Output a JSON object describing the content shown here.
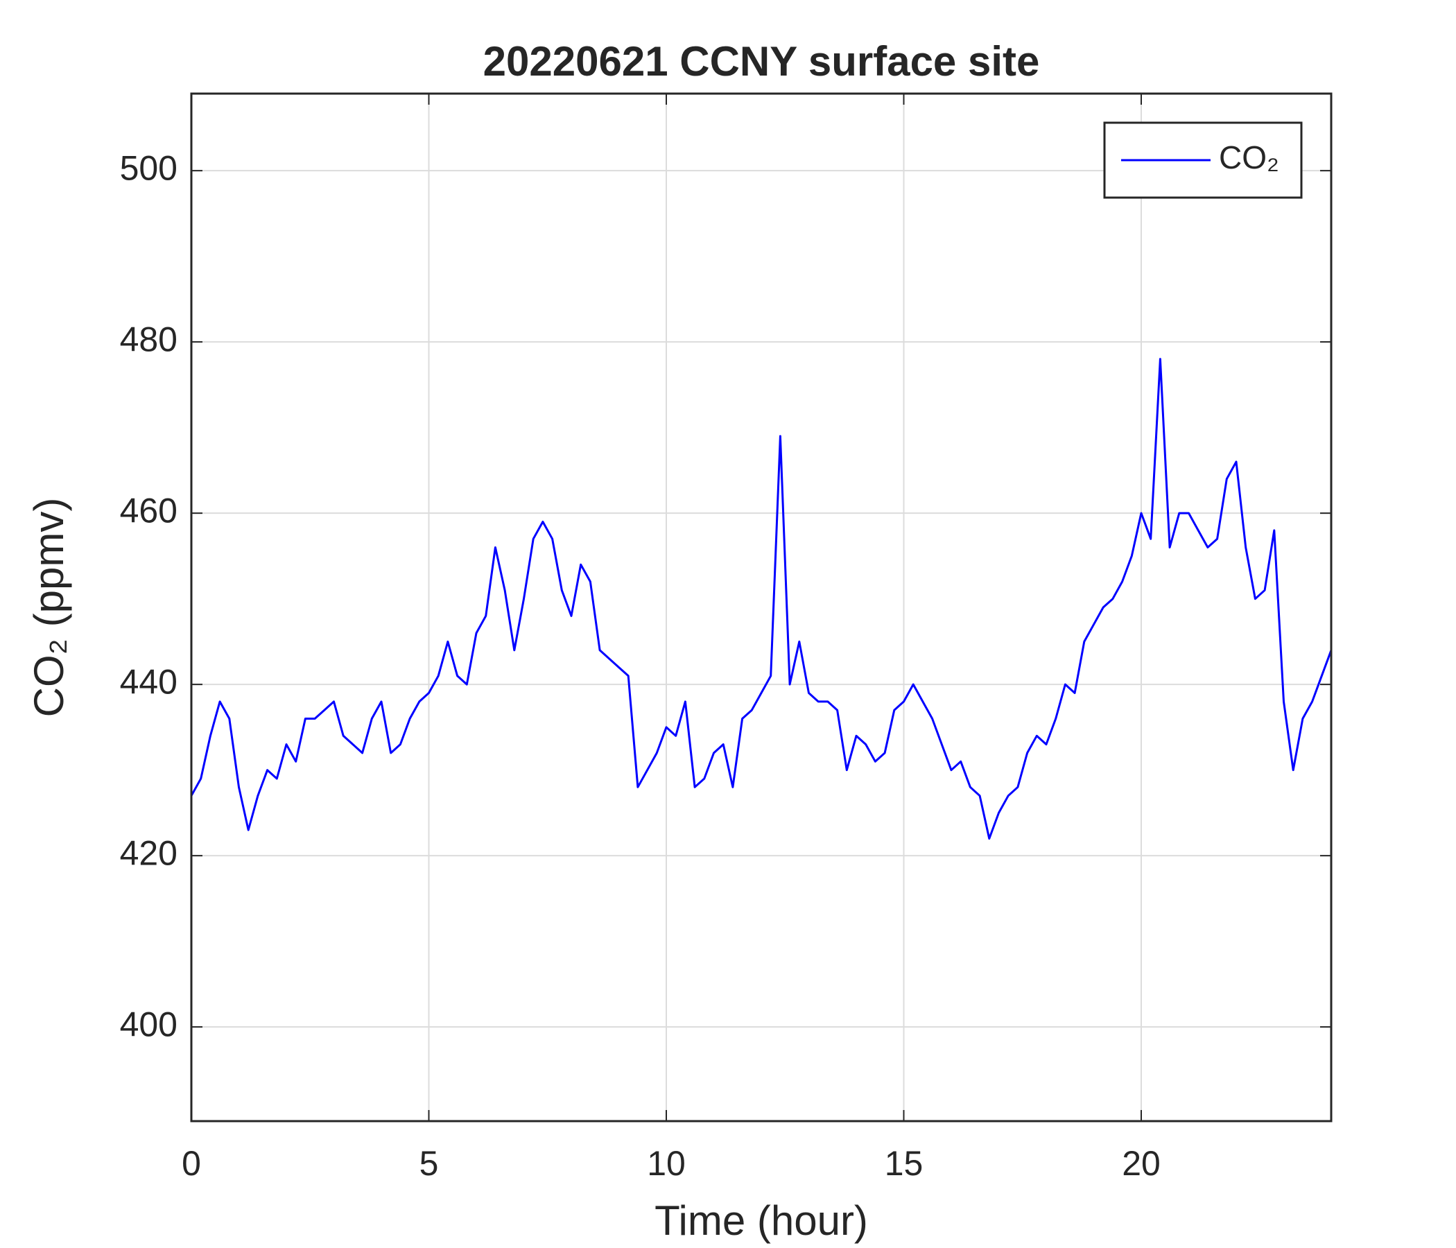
{
  "chart_data": {
    "type": "line",
    "title": "20220621 CCNY surface site",
    "xlabel": "Time (hour)",
    "ylabel": "CO₂ (ppmv)",
    "x": [
      0,
      0.2,
      0.4,
      0.6,
      0.8,
      1,
      1.2,
      1.4,
      1.6,
      1.8,
      2,
      2.2,
      2.4,
      2.6,
      2.8,
      3,
      3.2,
      3.4,
      3.6,
      3.8,
      4,
      4.2,
      4.4,
      4.6,
      4.8,
      5,
      5.2,
      5.4,
      5.6,
      5.8,
      6,
      6.2,
      6.4,
      6.6,
      6.8,
      7,
      7.2,
      7.4,
      7.6,
      7.8,
      8,
      8.2,
      8.4,
      8.6,
      8.8,
      9,
      9.2,
      9.4,
      9.6,
      9.8,
      10,
      10.2,
      10.4,
      10.6,
      10.8,
      11,
      11.2,
      11.4,
      11.6,
      11.8,
      12,
      12.2,
      12.4,
      12.6,
      12.8,
      13,
      13.2,
      13.4,
      13.6,
      13.8,
      14,
      14.2,
      14.4,
      14.6,
      14.8,
      15,
      15.2,
      15.4,
      15.6,
      15.8,
      16,
      16.2,
      16.4,
      16.6,
      16.8,
      17,
      17.2,
      17.4,
      17.6,
      17.8,
      18,
      18.2,
      18.4,
      18.6,
      18.8,
      19,
      19.2,
      19.4,
      19.6,
      19.8,
      20,
      20.2,
      20.4,
      20.6,
      20.8,
      21,
      21.2,
      21.4,
      21.6,
      21.8,
      22,
      22.2,
      22.4,
      22.6,
      22.8,
      23,
      23.2,
      23.4,
      23.6,
      23.8,
      24
    ],
    "series": [
      {
        "name": "CO₂",
        "color": "#0000ff",
        "values": [
          427,
          429,
          434,
          438,
          436,
          428,
          423,
          427,
          430,
          429,
          433,
          431,
          436,
          436,
          437,
          438,
          434,
          433,
          432,
          436,
          438,
          432,
          433,
          436,
          438,
          439,
          441,
          445,
          441,
          440,
          446,
          448,
          456,
          451,
          444,
          450,
          457,
          459,
          457,
          451,
          448,
          454,
          452,
          444,
          443,
          442,
          441,
          428,
          430,
          432,
          435,
          434,
          438,
          428,
          429,
          432,
          433,
          428,
          436,
          437,
          439,
          441,
          469,
          440,
          445,
          439,
          438,
          438,
          437,
          430,
          434,
          433,
          431,
          432,
          437,
          438,
          440,
          438,
          436,
          433,
          430,
          431,
          428,
          427,
          422,
          425,
          427,
          428,
          432,
          434,
          433,
          436,
          440,
          439,
          445,
          447,
          449,
          450,
          452,
          455,
          460,
          457,
          478,
          456,
          460,
          460,
          458,
          456,
          457,
          464,
          466,
          456,
          450,
          451,
          458,
          438,
          430,
          436,
          438,
          441,
          444
        ]
      }
    ],
    "xlim": [
      0,
      24
    ],
    "ylim": [
      389,
      509
    ],
    "xticks": [
      0,
      5,
      10,
      15,
      20
    ],
    "yticks": [
      400,
      420,
      440,
      460,
      480,
      500
    ],
    "grid": true,
    "legend": "upper right"
  }
}
